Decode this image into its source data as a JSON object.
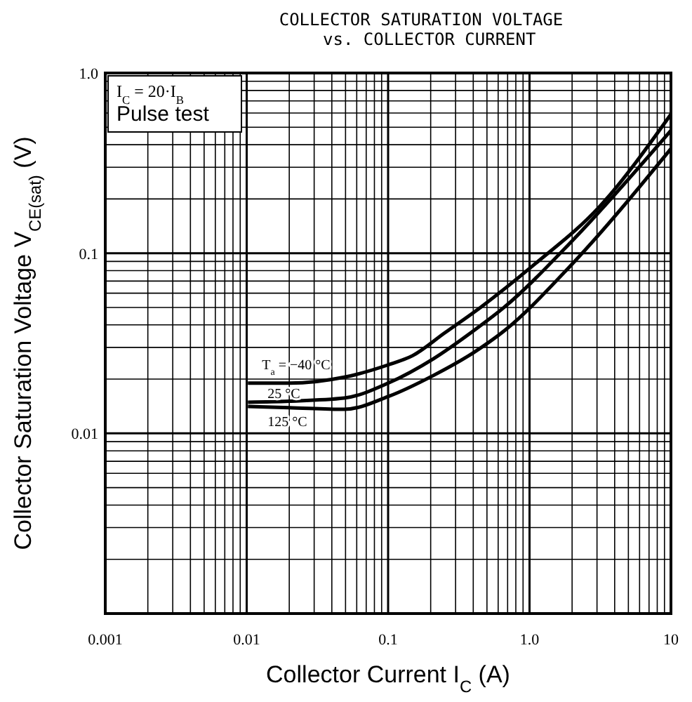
{
  "chart_data": {
    "type": "line",
    "title": "COLLECTOR SATURATION VOLTAGE",
    "subtitle": "vs. COLLECTOR CURRENT",
    "xlabel": "Collector Current  I$_{C}$  (A)",
    "ylabel": "Collector Saturation Voltage  V$_{CE(sat)}$  (V)",
    "annotations": [
      "I$_{C}$ = 20·I$_{B}$",
      "Pulse test"
    ],
    "log": "xy",
    "grid": true,
    "marker": "none",
    "line_style": "solid",
    "legend": false,
    "xlim": [
      0.001,
      10
    ],
    "xticks": [
      0.001,
      0.01,
      0.1,
      {
        "value": 1,
        "label": "1.0"
      },
      10
    ],
    "ylim": [
      0.001,
      1
    ],
    "yticks": [
      {
        "value": 0.001,
        "label": null
      },
      0.01,
      0.1,
      {
        "value": 1,
        "label": "1.0"
      }
    ],
    "series": [
      {
        "name": "T$_{a}$ = −40 °C",
        "color": "#000000",
        "x": [
          0.0102,
          0.02,
          0.049,
          0.1,
          0.149,
          0.25,
          0.45,
          1.09,
          3.1,
          10
        ],
        "values": [
          0.019,
          0.019,
          0.0205,
          0.024,
          0.027,
          0.036,
          0.05,
          0.087,
          0.18,
          0.59
        ]
      },
      {
        "name": "25 °C",
        "color": "#000000",
        "x": [
          0.0102,
          0.02,
          0.049,
          0.1,
          0.21,
          0.4,
          0.66,
          2.0,
          10
        ],
        "values": [
          0.0149,
          0.0151,
          0.0157,
          0.019,
          0.026,
          0.037,
          0.05,
          0.117,
          0.48
        ]
      },
      {
        "name": "125 °C",
        "color": "#000000",
        "x": [
          0.0102,
          0.02,
          0.049,
          0.1,
          0.21,
          0.4,
          0.66,
          2.0,
          10
        ],
        "values": [
          0.0141,
          0.0139,
          0.0136,
          0.016,
          0.021,
          0.028,
          0.037,
          0.087,
          0.38
        ]
      }
    ]
  }
}
